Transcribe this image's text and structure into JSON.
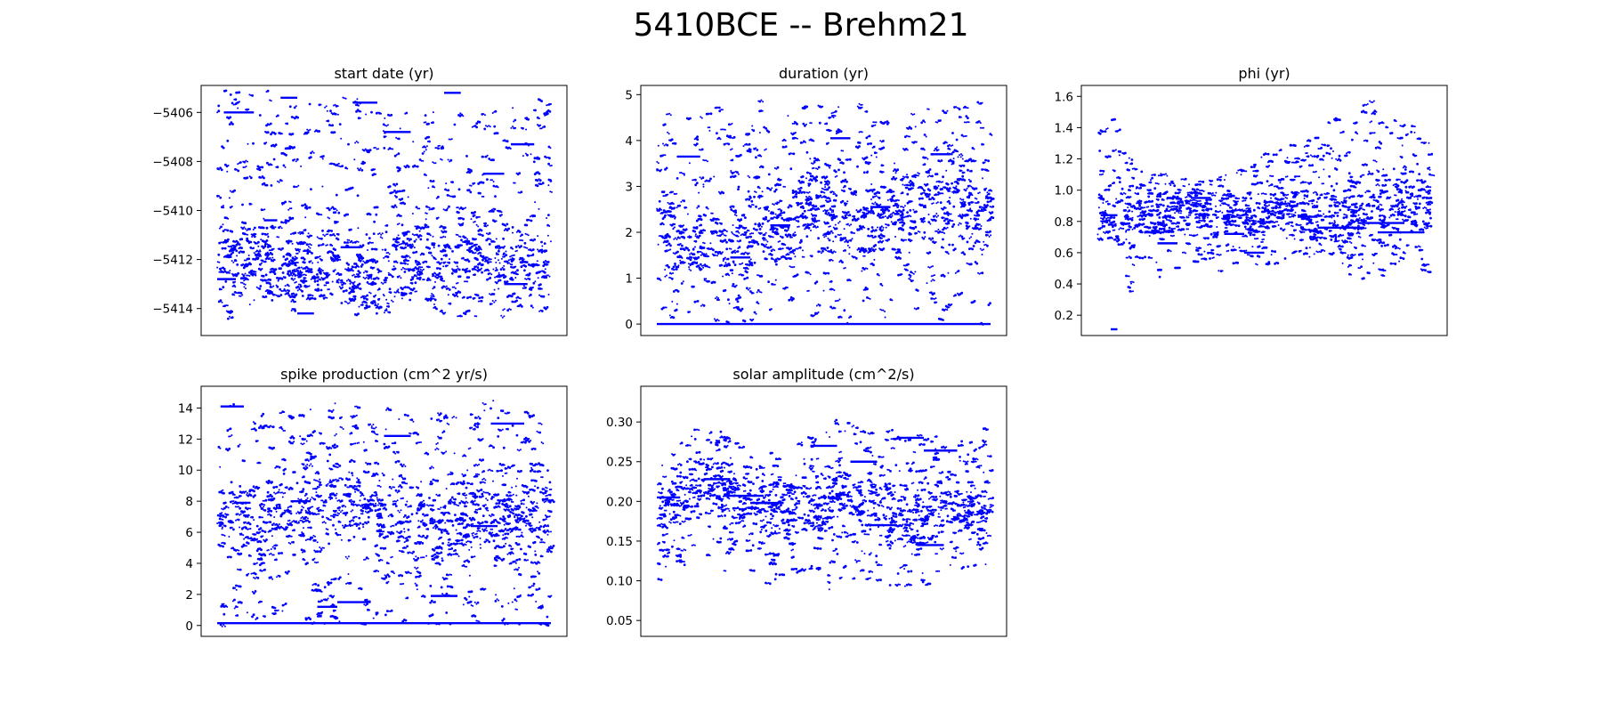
{
  "figure": {
    "suptitle": "5410BCE -- Brehm21",
    "marker_color": "#0000ff"
  },
  "chart_data": [
    {
      "type": "scatter",
      "title": "start date (yr)",
      "xlabel": "",
      "ylabel": "",
      "xlim": [
        0,
        5000
      ],
      "ylim": [
        -5415.1,
        -5404.9
      ],
      "yticks": [
        -5414,
        -5412,
        -5410,
        -5408,
        -5406
      ],
      "ytick_labels": [
        "−5414",
        "−5412",
        "−5410",
        "−5408",
        "−5406"
      ],
      "grid": false,
      "sample_count": 5000,
      "x": [
        0,
        250,
        500,
        750,
        1000,
        1250,
        1500,
        1750,
        2000,
        2250,
        2500,
        2750,
        3000,
        3250,
        3500,
        3750,
        4000,
        4250,
        4500,
        4750,
        5000
      ],
      "y_lower": [
        -5414.5,
        -5414.3,
        -5414.0,
        -5413.8,
        -5414.2,
        -5414.0,
        -5413.6,
        -5413.5,
        -5414.1,
        -5414.6,
        -5414.2,
        -5413.9,
        -5413.7,
        -5414.0,
        -5414.4,
        -5414.2,
        -5414.5,
        -5414.6,
        -5414.3,
        -5414.1,
        -5414.0
      ],
      "y_upper": [
        -5405.1,
        -5405.2,
        -5405.3,
        -5405.1,
        -5405.2,
        -5405.4,
        -5405.3,
        -5405.5,
        -5405.2,
        -5405.6,
        -5406.0,
        -5405.8,
        -5405.4,
        -5405.9,
        -5405.5,
        -5405.7,
        -5406.0,
        -5405.8,
        -5405.3,
        -5405.4,
        -5405.2
      ],
      "y_center": [
        -5412.0,
        -5412.4,
        -5411.8,
        -5412.5,
        -5412.8,
        -5412.2,
        -5412.9,
        -5412.0,
        -5412.6,
        -5412.8,
        -5413.0,
        -5412.4,
        -5411.6,
        -5412.1,
        -5412.3,
        -5411.8,
        -5412.0,
        -5412.2,
        -5412.5,
        -5412.0,
        -5411.8
      ],
      "plateaus": [
        {
          "x": [
            100,
            550
          ],
          "y": -5406.0
        },
        {
          "x": [
            950,
            1200
          ],
          "y": -5405.4
        },
        {
          "x": [
            2050,
            2400
          ],
          "y": -5405.6
        },
        {
          "x": [
            2500,
            2900
          ],
          "y": -5406.8
        },
        {
          "x": [
            3400,
            3650
          ],
          "y": -5405.2
        },
        {
          "x": [
            4000,
            4300
          ],
          "y": -5408.5
        },
        {
          "x": [
            4400,
            4750
          ],
          "y": -5407.3
        },
        {
          "x": [
            700,
            900
          ],
          "y": -5410.4
        },
        {
          "x": [
            1850,
            2150
          ],
          "y": -5411.5
        },
        {
          "x": [
            4300,
            4650
          ],
          "y": -5413.0
        },
        {
          "x": [
            0,
            280
          ],
          "y": -5412.8
        },
        {
          "x": [
            1200,
            1450
          ],
          "y": -5414.2
        }
      ]
    },
    {
      "type": "scatter",
      "title": "duration (yr)",
      "xlabel": "",
      "ylabel": "",
      "xlim": [
        0,
        5000
      ],
      "ylim": [
        -0.25,
        5.2
      ],
      "yticks": [
        0,
        1,
        2,
        3,
        4,
        5
      ],
      "ytick_labels": [
        "0",
        "1",
        "2",
        "3",
        "4",
        "5"
      ],
      "grid": false,
      "sample_count": 5000,
      "x": [
        0,
        250,
        500,
        750,
        1000,
        1250,
        1500,
        1750,
        2000,
        2250,
        2500,
        2750,
        3000,
        3250,
        3500,
        3750,
        4000,
        4250,
        4500,
        4750,
        5000
      ],
      "y_lower": [
        0.0,
        0.0,
        0.0,
        0.0,
        0.0,
        0.0,
        0.0,
        0.0,
        0.0,
        0.0,
        0.0,
        0.0,
        0.0,
        0.0,
        0.0,
        0.0,
        0.0,
        0.0,
        0.0,
        0.0,
        0.0
      ],
      "y_upper": [
        4.5,
        4.8,
        4.6,
        4.9,
        4.7,
        4.8,
        4.9,
        4.6,
        4.8,
        4.9,
        4.7,
        4.8,
        4.9,
        4.6,
        4.8,
        4.9,
        4.9,
        4.7,
        4.9,
        4.8,
        4.9
      ],
      "y_center": [
        2.5,
        2.2,
        1.5,
        2.0,
        1.8,
        1.6,
        2.0,
        2.2,
        2.0,
        2.4,
        2.3,
        2.6,
        2.2,
        2.0,
        2.5,
        2.6,
        2.8,
        2.5,
        2.7,
        2.6,
        2.4
      ],
      "plateaus": [
        {
          "x": [
            0,
            5000
          ],
          "y": 0.0
        },
        {
          "x": [
            300,
            650
          ],
          "y": 3.65
        },
        {
          "x": [
            1100,
            1400
          ],
          "y": 1.45
        },
        {
          "x": [
            1700,
            2000
          ],
          "y": 2.15
        },
        {
          "x": [
            2600,
            2900
          ],
          "y": 4.05
        },
        {
          "x": [
            3200,
            3500
          ],
          "y": 2.55
        },
        {
          "x": [
            4100,
            4400
          ],
          "y": 3.7
        }
      ]
    },
    {
      "type": "scatter",
      "title": "phi (yr)",
      "xlabel": "",
      "ylabel": "",
      "xlim": [
        0,
        5000
      ],
      "ylim": [
        0.07,
        1.67
      ],
      "yticks": [
        0.2,
        0.4,
        0.6,
        0.8,
        1.0,
        1.2,
        1.4,
        1.6
      ],
      "ytick_labels": [
        "0.2",
        "0.4",
        "0.6",
        "0.8",
        "1.0",
        "1.2",
        "1.4",
        "1.6"
      ],
      "grid": false,
      "sample_count": 5000,
      "x": [
        0,
        250,
        500,
        750,
        1000,
        1250,
        1500,
        1750,
        2000,
        2250,
        2500,
        2750,
        3000,
        3250,
        3500,
        3750,
        4000,
        4250,
        4500,
        4750,
        5000
      ],
      "y_lower": [
        0.55,
        0.45,
        0.35,
        0.4,
        0.45,
        0.5,
        0.55,
        0.5,
        0.45,
        0.55,
        0.5,
        0.55,
        0.6,
        0.55,
        0.5,
        0.45,
        0.4,
        0.45,
        0.5,
        0.45,
        0.45
      ],
      "y_upper": [
        1.4,
        1.5,
        1.2,
        1.15,
        1.1,
        1.1,
        1.05,
        1.1,
        1.15,
        1.15,
        1.25,
        1.3,
        1.3,
        1.4,
        1.45,
        1.5,
        1.6,
        1.55,
        1.5,
        1.4,
        1.35
      ],
      "y_center": [
        0.85,
        0.8,
        0.82,
        0.85,
        0.8,
        0.88,
        0.9,
        0.85,
        0.85,
        0.8,
        0.82,
        0.85,
        0.9,
        0.78,
        0.8,
        0.85,
        0.9,
        0.85,
        0.88,
        0.9,
        0.85
      ],
      "plateaus": [
        {
          "x": [
            50,
            300
          ],
          "y": 0.84
        },
        {
          "x": [
            700,
            1000
          ],
          "y": 0.73
        },
        {
          "x": [
            900,
            1200
          ],
          "y": 0.66
        },
        {
          "x": [
            1400,
            1700
          ],
          "y": 0.95
        },
        {
          "x": [
            1900,
            2200
          ],
          "y": 0.72
        },
        {
          "x": [
            2200,
            2500
          ],
          "y": 0.6
        },
        {
          "x": [
            3000,
            3300
          ],
          "y": 0.83
        },
        {
          "x": [
            3300,
            4000
          ],
          "y": 0.76
        },
        {
          "x": [
            3900,
            4600
          ],
          "y": 0.79
        },
        {
          "x": [
            4200,
            4900
          ],
          "y": 0.73
        },
        {
          "x": [
            200,
            300
          ],
          "y": 0.11
        }
      ]
    },
    {
      "type": "scatter",
      "title": "spike production (cm^2 yr/s)",
      "xlabel": "",
      "ylabel": "",
      "xlim": [
        0,
        5000
      ],
      "ylim": [
        -0.7,
        15.4
      ],
      "yticks": [
        0,
        2,
        4,
        6,
        8,
        10,
        12,
        14
      ],
      "ytick_labels": [
        "0",
        "2",
        "4",
        "6",
        "8",
        "10",
        "12",
        "14"
      ],
      "grid": false,
      "sample_count": 5000,
      "x": [
        0,
        250,
        500,
        750,
        1000,
        1250,
        1500,
        1750,
        2000,
        2250,
        2500,
        2750,
        3000,
        3250,
        3500,
        3750,
        4000,
        4250,
        4500,
        4750,
        5000
      ],
      "y_lower": [
        0.0,
        0.0,
        0.0,
        0.0,
        0.0,
        0.0,
        0.0,
        0.0,
        0.0,
        0.0,
        0.0,
        0.0,
        0.0,
        0.0,
        0.0,
        0.0,
        0.0,
        0.0,
        0.0,
        0.0,
        0.0
      ],
      "y_upper": [
        14.5,
        14.3,
        13.5,
        13.8,
        14.0,
        14.2,
        14.5,
        14.6,
        14.4,
        14.2,
        14.0,
        14.5,
        14.3,
        13.8,
        14.0,
        14.2,
        14.6,
        14.3,
        14.2,
        14.4,
        14.5
      ],
      "y_center": [
        7.0,
        6.5,
        6.0,
        6.5,
        7.0,
        7.5,
        8.0,
        8.5,
        8.0,
        7.5,
        7.0,
        6.5,
        7.0,
        6.5,
        6.0,
        7.0,
        6.5,
        7.0,
        6.5,
        7.0,
        7.5
      ],
      "plateaus": [
        {
          "x": [
            0,
            5000
          ],
          "y": 0.15
        },
        {
          "x": [
            50,
            400
          ],
          "y": 14.1
        },
        {
          "x": [
            250,
            500
          ],
          "y": 7.9
        },
        {
          "x": [
            1100,
            1400
          ],
          "y": 8.0
        },
        {
          "x": [
            1500,
            1800
          ],
          "y": 1.2
        },
        {
          "x": [
            1800,
            2300
          ],
          "y": 1.5
        },
        {
          "x": [
            2500,
            2900
          ],
          "y": 12.2
        },
        {
          "x": [
            3800,
            4200
          ],
          "y": 6.4
        },
        {
          "x": [
            4100,
            4600
          ],
          "y": 13.0
        },
        {
          "x": [
            3200,
            3600
          ],
          "y": 1.9
        }
      ]
    },
    {
      "type": "scatter",
      "title": "solar amplitude (cm^2/s)",
      "xlabel": "",
      "ylabel": "",
      "xlim": [
        0,
        5000
      ],
      "ylim": [
        0.03,
        0.345
      ],
      "yticks": [
        0.05,
        0.1,
        0.15,
        0.2,
        0.25,
        0.3
      ],
      "ytick_labels": [
        "0.05",
        "0.10",
        "0.15",
        "0.20",
        "0.25",
        "0.30"
      ],
      "grid": false,
      "sample_count": 5000,
      "x": [
        0,
        250,
        500,
        750,
        1000,
        1250,
        1500,
        1750,
        2000,
        2250,
        2500,
        2750,
        3000,
        3250,
        3500,
        3750,
        4000,
        4250,
        4500,
        4750,
        5000
      ],
      "y_lower": [
        0.09,
        0.1,
        0.12,
        0.13,
        0.11,
        0.1,
        0.09,
        0.09,
        0.1,
        0.09,
        0.08,
        0.09,
        0.1,
        0.1,
        0.09,
        0.08,
        0.09,
        0.1,
        0.11,
        0.11,
        0.12
      ],
      "y_upper": [
        0.27,
        0.28,
        0.29,
        0.3,
        0.29,
        0.28,
        0.27,
        0.26,
        0.27,
        0.28,
        0.3,
        0.32,
        0.3,
        0.29,
        0.29,
        0.28,
        0.29,
        0.28,
        0.27,
        0.29,
        0.3
      ],
      "y_center": [
        0.2,
        0.21,
        0.22,
        0.22,
        0.21,
        0.2,
        0.2,
        0.19,
        0.19,
        0.19,
        0.19,
        0.2,
        0.2,
        0.19,
        0.18,
        0.18,
        0.19,
        0.19,
        0.19,
        0.19,
        0.19
      ],
      "plateaus": [
        {
          "x": [
            0,
            350
          ],
          "y": 0.205
        },
        {
          "x": [
            700,
            1100
          ],
          "y": 0.228
        },
        {
          "x": [
            1000,
            1600
          ],
          "y": 0.207
        },
        {
          "x": [
            1400,
            1900
          ],
          "y": 0.198
        },
        {
          "x": [
            2300,
            2700
          ],
          "y": 0.27
        },
        {
          "x": [
            2900,
            3300
          ],
          "y": 0.25
        },
        {
          "x": [
            3600,
            4000
          ],
          "y": 0.28
        },
        {
          "x": [
            4000,
            4500
          ],
          "y": 0.264
        },
        {
          "x": [
            3200,
            3600
          ],
          "y": 0.17
        },
        {
          "x": [
            3900,
            4300
          ],
          "y": 0.145
        }
      ]
    }
  ]
}
